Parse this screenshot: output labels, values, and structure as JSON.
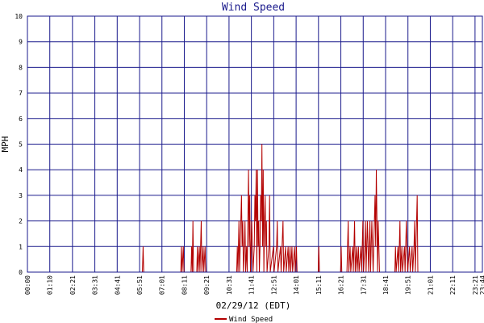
{
  "chart_data": {
    "type": "line",
    "title": "Wind Speed",
    "xlabel": "02/29/12 (EDT)",
    "ylabel": "MPH",
    "ylim": [
      0,
      10
    ],
    "yticks": [
      0,
      1,
      2,
      3,
      4,
      5,
      6,
      7,
      8,
      9,
      10
    ],
    "x_range_minutes": [
      0,
      1424
    ],
    "xticks": [
      {
        "label": "00:00",
        "minute": 0
      },
      {
        "label": "01:10",
        "minute": 70
      },
      {
        "label": "02:21",
        "minute": 141
      },
      {
        "label": "03:31",
        "minute": 211
      },
      {
        "label": "04:41",
        "minute": 281
      },
      {
        "label": "05:51",
        "minute": 351
      },
      {
        "label": "07:01",
        "minute": 421
      },
      {
        "label": "08:11",
        "minute": 491
      },
      {
        "label": "09:21",
        "minute": 561
      },
      {
        "label": "10:31",
        "minute": 631
      },
      {
        "label": "11:41",
        "minute": 701
      },
      {
        "label": "12:51",
        "minute": 771
      },
      {
        "label": "14:01",
        "minute": 841
      },
      {
        "label": "15:11",
        "minute": 911
      },
      {
        "label": "16:21",
        "minute": 981
      },
      {
        "label": "17:31",
        "minute": 1051
      },
      {
        "label": "18:41",
        "minute": 1121
      },
      {
        "label": "19:51",
        "minute": 1191
      },
      {
        "label": "21:01",
        "minute": 1261
      },
      {
        "label": "22:11",
        "minute": 1331
      },
      {
        "label": "23:21",
        "minute": 1401
      },
      {
        "label": "23:44",
        "minute": 1424
      }
    ],
    "grid": true,
    "legend_position": "bottom-center",
    "series": [
      {
        "name": "Wind Speed",
        "color": "#b30000",
        "points": [
          [
            0,
            0
          ],
          [
            360,
            0
          ],
          [
            362,
            1
          ],
          [
            364,
            0
          ],
          [
            480,
            0
          ],
          [
            482,
            1
          ],
          [
            484,
            0
          ],
          [
            488,
            1
          ],
          [
            490,
            0
          ],
          [
            512,
            0
          ],
          [
            514,
            1
          ],
          [
            516,
            0
          ],
          [
            518,
            2
          ],
          [
            520,
            0
          ],
          [
            530,
            0
          ],
          [
            532,
            1
          ],
          [
            534,
            0
          ],
          [
            538,
            1
          ],
          [
            540,
            0
          ],
          [
            544,
            2
          ],
          [
            546,
            0
          ],
          [
            550,
            1
          ],
          [
            552,
            0
          ],
          [
            556,
            1
          ],
          [
            558,
            0
          ],
          [
            655,
            0
          ],
          [
            657,
            1
          ],
          [
            659,
            0
          ],
          [
            662,
            2
          ],
          [
            664,
            0
          ],
          [
            666,
            1
          ],
          [
            668,
            2
          ],
          [
            670,
            3
          ],
          [
            672,
            1
          ],
          [
            674,
            2
          ],
          [
            676,
            0
          ],
          [
            679,
            1
          ],
          [
            681,
            2
          ],
          [
            683,
            0
          ],
          [
            686,
            1
          ],
          [
            688,
            0
          ],
          [
            692,
            4
          ],
          [
            694,
            1
          ],
          [
            696,
            3
          ],
          [
            698,
            0
          ],
          [
            702,
            2
          ],
          [
            704,
            1
          ],
          [
            706,
            0
          ],
          [
            710,
            1
          ],
          [
            712,
            3
          ],
          [
            714,
            2
          ],
          [
            716,
            4
          ],
          [
            718,
            0
          ],
          [
            720,
            4
          ],
          [
            722,
            1
          ],
          [
            724,
            2
          ],
          [
            726,
            0
          ],
          [
            728,
            1
          ],
          [
            730,
            3
          ],
          [
            732,
            2
          ],
          [
            734,
            5
          ],
          [
            736,
            1
          ],
          [
            738,
            4
          ],
          [
            740,
            0
          ],
          [
            742,
            2
          ],
          [
            744,
            3
          ],
          [
            746,
            1
          ],
          [
            748,
            2
          ],
          [
            750,
            0
          ],
          [
            756,
            1
          ],
          [
            758,
            3
          ],
          [
            760,
            0
          ],
          [
            770,
            1
          ],
          [
            772,
            0
          ],
          [
            780,
            1
          ],
          [
            782,
            2
          ],
          [
            784,
            0
          ],
          [
            792,
            1
          ],
          [
            794,
            0
          ],
          [
            800,
            2
          ],
          [
            802,
            0
          ],
          [
            808,
            1
          ],
          [
            810,
            0
          ],
          [
            816,
            1
          ],
          [
            818,
            0
          ],
          [
            822,
            1
          ],
          [
            824,
            0
          ],
          [
            828,
            1
          ],
          [
            830,
            0
          ],
          [
            836,
            1
          ],
          [
            838,
            0
          ],
          [
            842,
            1
          ],
          [
            844,
            0
          ],
          [
            910,
            0
          ],
          [
            912,
            1
          ],
          [
            914,
            0
          ],
          [
            980,
            0
          ],
          [
            982,
            1
          ],
          [
            984,
            0
          ],
          [
            1000,
            0
          ],
          [
            1002,
            1
          ],
          [
            1004,
            2
          ],
          [
            1006,
            0
          ],
          [
            1010,
            1
          ],
          [
            1012,
            0
          ],
          [
            1018,
            1
          ],
          [
            1020,
            0
          ],
          [
            1024,
            2
          ],
          [
            1026,
            0
          ],
          [
            1030,
            1
          ],
          [
            1032,
            0
          ],
          [
            1036,
            1
          ],
          [
            1038,
            0
          ],
          [
            1044,
            1
          ],
          [
            1046,
            0
          ],
          [
            1050,
            2
          ],
          [
            1052,
            0
          ],
          [
            1056,
            1
          ],
          [
            1058,
            2
          ],
          [
            1060,
            0
          ],
          [
            1064,
            2
          ],
          [
            1066,
            1
          ],
          [
            1068,
            0
          ],
          [
            1072,
            2
          ],
          [
            1074,
            0
          ],
          [
            1078,
            2
          ],
          [
            1080,
            1
          ],
          [
            1082,
            0
          ],
          [
            1086,
            2
          ],
          [
            1088,
            3
          ],
          [
            1090,
            1
          ],
          [
            1092,
            4
          ],
          [
            1094,
            2
          ],
          [
            1096,
            0
          ],
          [
            1098,
            2
          ],
          [
            1100,
            1
          ],
          [
            1102,
            0
          ],
          [
            1150,
            0
          ],
          [
            1152,
            1
          ],
          [
            1154,
            0
          ],
          [
            1160,
            1
          ],
          [
            1162,
            0
          ],
          [
            1166,
            2
          ],
          [
            1168,
            0
          ],
          [
            1172,
            1
          ],
          [
            1174,
            0
          ],
          [
            1180,
            1
          ],
          [
            1182,
            0
          ],
          [
            1186,
            2
          ],
          [
            1188,
            1
          ],
          [
            1190,
            0
          ],
          [
            1196,
            1
          ],
          [
            1198,
            0
          ],
          [
            1204,
            1
          ],
          [
            1206,
            0
          ],
          [
            1210,
            1
          ],
          [
            1212,
            2
          ],
          [
            1214,
            0
          ],
          [
            1220,
            3
          ],
          [
            1222,
            0
          ],
          [
            1424,
            0
          ]
        ]
      }
    ]
  }
}
